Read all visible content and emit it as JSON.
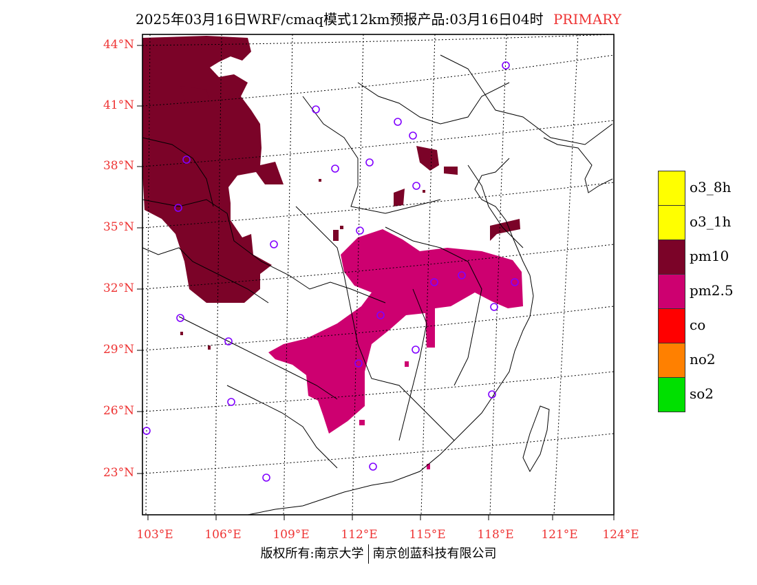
{
  "header": {
    "title": "2025年03月16日WRF/cmaq模式12km预报产品:03月16日04时",
    "tag": "PRIMARY"
  },
  "map": {
    "lat_labels": [
      "44°N",
      "41°N",
      "38°N",
      "35°N",
      "32°N",
      "29°N",
      "26°N",
      "23°N"
    ],
    "lon_labels": [
      "103°E",
      "106°E",
      "109°E",
      "112°E",
      "115°E",
      "118°E",
      "121°E",
      "124°E"
    ],
    "marker_icon": "station-circle-icon"
  },
  "legend": {
    "items": [
      {
        "label": "o3_8h",
        "color": "#ffff00"
      },
      {
        "label": "o3_1h",
        "color": "#ffff00"
      },
      {
        "label": "pm10",
        "color": "#7b0328"
      },
      {
        "label": "pm2.5",
        "color": "#cd0070"
      },
      {
        "label": "co",
        "color": "#ff0000"
      },
      {
        "label": "no2",
        "color": "#ff8000"
      },
      {
        "label": "so2",
        "color": "#00e000"
      }
    ]
  },
  "footer": {
    "copyright": "版权所有:南京大学",
    "company": "南京创蓝科技有限公司"
  }
}
